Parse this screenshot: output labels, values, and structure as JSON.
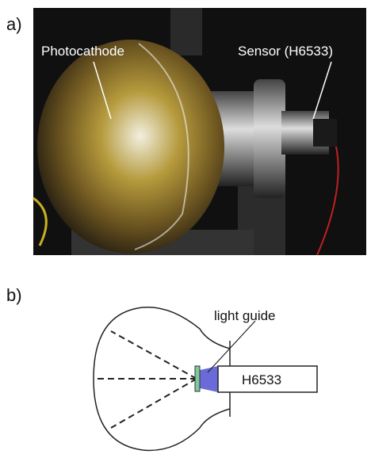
{
  "panels": [
    {
      "label": "a)",
      "annotations": [
        "Photocathode",
        "Sensor (H6533)"
      ]
    },
    {
      "label": "b)",
      "annotations": [
        "light guide"
      ],
      "box_label": "H6533"
    }
  ]
}
